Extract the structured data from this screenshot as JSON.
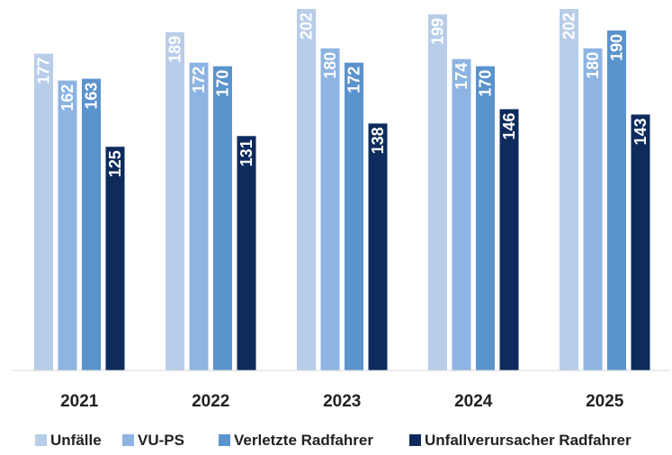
{
  "chart_data": {
    "type": "bar",
    "categories": [
      "2021",
      "2022",
      "2023",
      "2024",
      "2025"
    ],
    "series": [
      {
        "name": "Unfälle",
        "color": "#b8cde8",
        "values": [
          177,
          189,
          202,
          199,
          202
        ]
      },
      {
        "name": "VU-PS",
        "color": "#8db4e2",
        "values": [
          162,
          172,
          180,
          174,
          180
        ]
      },
      {
        "name": "Verletzte Radfahrer",
        "color": "#5b93cc",
        "values": [
          163,
          170,
          172,
          170,
          190
        ]
      },
      {
        "name": "Unfallverursacher Radfahrer",
        "color": "#0d2b5c",
        "values": [
          125,
          131,
          138,
          146,
          143
        ]
      }
    ],
    "ylim": [
      0,
      205
    ],
    "grid": false,
    "legend_position": "bottom",
    "data_labels": "inside-top-rotated"
  }
}
